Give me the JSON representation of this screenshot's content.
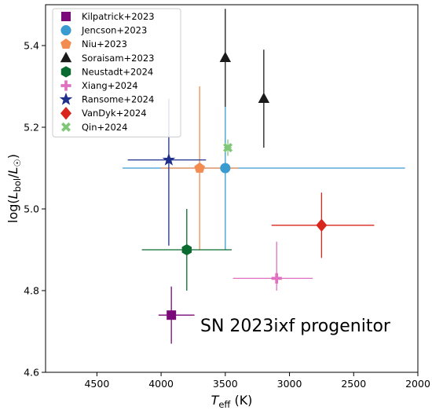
{
  "chart_data": {
    "type": "scatter",
    "xlabel": "T_eff (K)",
    "ylabel": "log(L_bol/L_☉)",
    "xlim": [
      4900,
      2000
    ],
    "ylim": [
      4.6,
      5.5
    ],
    "x_ticks": [
      4500,
      4000,
      3500,
      3000,
      2500,
      2000
    ],
    "y_ticks": [
      4.6,
      4.8,
      5.0,
      5.2,
      5.4
    ],
    "annotation": "SN 2023ixf progenitor",
    "legend_position": "upper-left",
    "series": [
      {
        "name": "Kilpatrick+2023",
        "marker": "square",
        "color": "#7a0a7a",
        "x": 3920,
        "y": 4.74,
        "x_err": [
          4020,
          3740
        ],
        "y_err": [
          4.67,
          4.81
        ]
      },
      {
        "name": "Jencson+2023",
        "marker": "circle",
        "color": "#3a9bd0",
        "x": 3500,
        "y": 5.1,
        "x_err": [
          4300,
          2100
        ],
        "y_err": [
          4.9,
          5.25
        ]
      },
      {
        "name": "Niu+2023",
        "marker": "pentagon",
        "color": "#f28c50",
        "x": 3700,
        "y": 5.1,
        "x_err": [
          4000,
          3400
        ],
        "y_err": [
          4.9,
          5.3
        ]
      },
      {
        "name": "Soraisam+2023",
        "marker": "triangle",
        "color": "#1a1a1a",
        "x": 3500,
        "y": 5.37,
        "x_err": null,
        "y_err": [
          5.25,
          5.49
        ],
        "extra_point": {
          "x": 3200,
          "y": 5.27,
          "y_err": [
            5.15,
            5.39
          ]
        }
      },
      {
        "name": "Neustadt+2024",
        "marker": "hexagon",
        "color": "#0a6b30",
        "x": 3800,
        "y": 4.9,
        "x_err": [
          4150,
          3450
        ],
        "y_err": [
          4.8,
          5.0
        ]
      },
      {
        "name": "Xiang+2024",
        "marker": "plus",
        "color": "#e070c0",
        "x": 3100,
        "y": 4.83,
        "x_err": [
          3440,
          2820
        ],
        "y_err": [
          4.8,
          4.92
        ]
      },
      {
        "name": "Ransome+2024",
        "marker": "star",
        "color": "#1e2f8c",
        "x": 3940,
        "y": 5.12,
        "x_err": [
          4260,
          3650
        ],
        "y_err": [
          4.91,
          5.27
        ]
      },
      {
        "name": "VanDyk+2024",
        "marker": "diamond",
        "color": "#d9261c",
        "x": 2750,
        "y": 4.96,
        "x_err": [
          3140,
          2340
        ],
        "y_err": [
          4.88,
          5.04
        ]
      },
      {
        "name": "Qin+2024",
        "marker": "x-cross",
        "color": "#80c878",
        "x": 3480,
        "y": 5.15,
        "x_err": [
          3510,
          3450
        ],
        "y_err": [
          5.13,
          5.17
        ]
      }
    ]
  }
}
